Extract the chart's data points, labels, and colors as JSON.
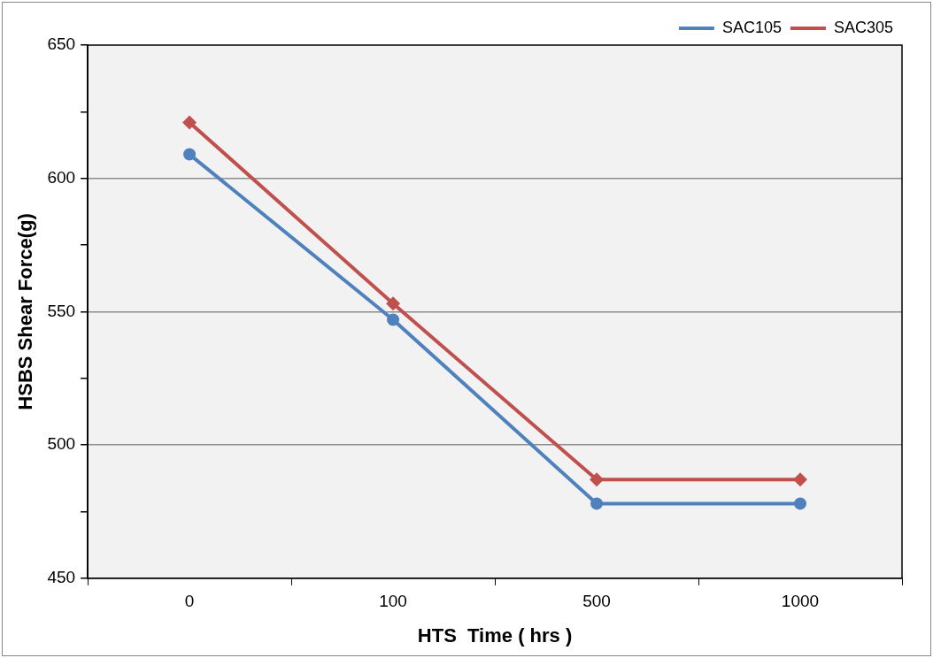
{
  "chart_data": {
    "type": "line",
    "xlabel": "HTS  Time ( hrs )",
    "ylabel": "HSBS Shear Force(g)",
    "categories": [
      "0",
      "100",
      "500",
      "1000"
    ],
    "series": [
      {
        "name": "SAC105",
        "color": "#4f81bd",
        "marker": "circle",
        "values": [
          609,
          547,
          478,
          478
        ]
      },
      {
        "name": "SAC305",
        "color": "#c0504d",
        "marker": "diamond",
        "values": [
          621,
          553,
          487,
          487
        ]
      }
    ],
    "ylim": [
      450,
      650
    ],
    "yticks": [
      450,
      {
        "value": 475,
        "label": null
      },
      500,
      {
        "value": 525,
        "label": null
      },
      550,
      {
        "value": 575,
        "label": null
      },
      600,
      {
        "value": 625,
        "label": null
      },
      650
    ],
    "grid": "y",
    "legend": "top right",
    "line_style": "solid"
  }
}
